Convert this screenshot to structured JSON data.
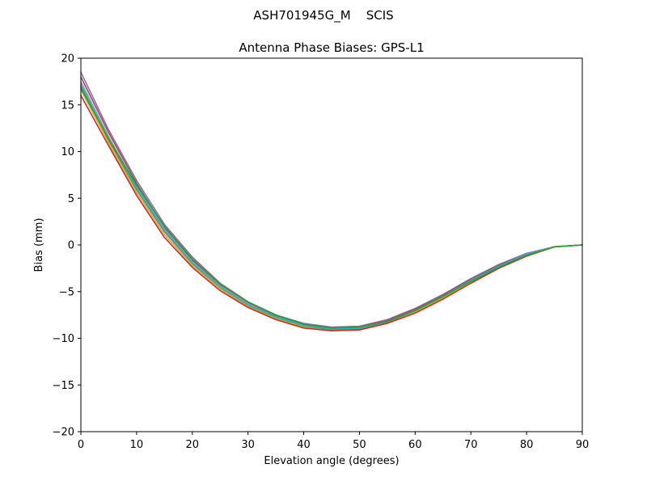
{
  "figure": {
    "suptitle": "ASH701945G_M    SCIS"
  },
  "chart_data": {
    "type": "line",
    "title": "Antenna Phase Biases: GPS-L1",
    "xlabel": "Elevation angle (degrees)",
    "ylabel": "Bias (mm)",
    "xlim": [
      0,
      90
    ],
    "ylim": [
      -20,
      20
    ],
    "xticks": [
      0,
      10,
      20,
      30,
      40,
      50,
      60,
      70,
      80,
      90
    ],
    "yticks": [
      -20,
      -15,
      -10,
      -5,
      0,
      5,
      10,
      15,
      20
    ],
    "xtick_labels": [
      "0",
      "10",
      "20",
      "30",
      "40",
      "50",
      "60",
      "70",
      "80",
      "90"
    ],
    "ytick_labels": [
      "−20",
      "−15",
      "−10",
      "−5",
      "0",
      "5",
      "10",
      "15",
      "20"
    ],
    "grid": false,
    "legend": "none",
    "x": [
      0,
      5,
      10,
      15,
      20,
      25,
      30,
      35,
      40,
      45,
      50,
      55,
      60,
      65,
      70,
      75,
      80,
      85,
      90
    ],
    "series": [
      {
        "color": "#9467bd",
        "values": [
          18.5,
          12.3,
          6.9,
          2.2,
          -1.3,
          -4.1,
          -6.1,
          -7.5,
          -8.4,
          -8.8,
          -8.7,
          -8.0,
          -6.8,
          -5.3,
          -3.6,
          -2.1,
          -0.9,
          -0.2,
          0.0
        ]
      },
      {
        "color": "#8c564b",
        "values": [
          18.0,
          12.0,
          6.6,
          1.9,
          -1.6,
          -4.3,
          -6.2,
          -7.6,
          -8.5,
          -8.9,
          -8.8,
          -8.1,
          -6.9,
          -5.4,
          -3.7,
          -2.2,
          -1.0,
          -0.2,
          0.0
        ]
      },
      {
        "color": "#e377c2",
        "values": [
          17.5,
          11.6,
          6.3,
          1.7,
          -1.8,
          -4.4,
          -6.3,
          -7.7,
          -8.6,
          -9.0,
          -8.9,
          -8.2,
          -7.0,
          -5.5,
          -3.8,
          -2.3,
          -1.0,
          -0.2,
          0.0
        ]
      },
      {
        "color": "#7f7f7f",
        "values": [
          17.0,
          11.2,
          5.9,
          1.4,
          -2.0,
          -4.6,
          -6.5,
          -7.8,
          -8.7,
          -9.1,
          -9.0,
          -8.3,
          -7.1,
          -5.6,
          -3.9,
          -2.4,
          -1.1,
          -0.2,
          0.0
        ]
      },
      {
        "color": "#bcbd22",
        "values": [
          16.6,
          10.9,
          5.6,
          1.1,
          -2.2,
          -4.7,
          -6.6,
          -7.9,
          -8.8,
          -9.2,
          -9.1,
          -8.4,
          -7.2,
          -5.7,
          -4.0,
          -2.5,
          -1.1,
          -0.2,
          0.0
        ]
      },
      {
        "color": "#d62728",
        "values": [
          16.0,
          10.6,
          5.3,
          0.8,
          -2.4,
          -4.9,
          -6.7,
          -8.0,
          -8.9,
          -9.2,
          -9.1,
          -8.4,
          -7.3,
          -5.8,
          -4.1,
          -2.5,
          -1.2,
          -0.2,
          0.0
        ]
      },
      {
        "color": "#17becf",
        "values": [
          17.2,
          11.4,
          6.1,
          1.6,
          -1.9,
          -4.5,
          -6.4,
          -7.7,
          -8.6,
          -9.0,
          -8.9,
          -8.2,
          -7.0,
          -5.5,
          -3.8,
          -2.3,
          -1.0,
          -0.2,
          0.0
        ]
      },
      {
        "color": "#2ca02c",
        "values": [
          16.8,
          11.3,
          6.4,
          2.0,
          -1.5,
          -4.2,
          -6.1,
          -7.5,
          -8.5,
          -8.9,
          -8.8,
          -8.2,
          -7.0,
          -5.5,
          -3.9,
          -2.4,
          -1.1,
          -0.2,
          0.0
        ]
      }
    ]
  }
}
